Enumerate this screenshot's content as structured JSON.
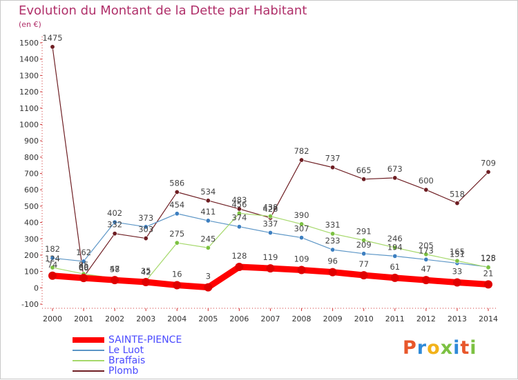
{
  "header": {
    "title": "Evolution du Montant de la Dette par Habitant",
    "unit": "(en €)"
  },
  "logo": {
    "text": "Proxiti",
    "colors": [
      "#e8572b",
      "#2f8ad8",
      "#f2b21a",
      "#7cc142",
      "#2f8ad8",
      "#e8572b",
      "#7cc142"
    ]
  },
  "chart_data": {
    "type": "line",
    "x": [
      "2000",
      "2001",
      "2002",
      "2003",
      "2004",
      "2005",
      "2006",
      "2007",
      "2008",
      "2009",
      "2010",
      "2011",
      "2012",
      "2013",
      "2014"
    ],
    "ylim": [
      -100,
      1500
    ],
    "yticks": [
      -100,
      0,
      100,
      200,
      300,
      400,
      500,
      600,
      700,
      800,
      900,
      1000,
      1100,
      1200,
      1300,
      1400,
      1500
    ],
    "grid": false,
    "legend": "bottom-left",
    "series": [
      {
        "name": "Plomb",
        "color": "#6e1e23",
        "marker": "#6e1e23",
        "width": 1.2,
        "radius": 3.2,
        "labeled": true,
        "values": [
          1475,
          66,
          332,
          303,
          586,
          534,
          483,
          428,
          782,
          737,
          665,
          673,
          600,
          518,
          709
        ]
      },
      {
        "name": "Le Luot",
        "color": "#5b95c6",
        "marker": "#3d7fc0",
        "width": 1.2,
        "radius": 3.2,
        "labeled": true,
        "values": [
          182,
          162,
          402,
          373,
          454,
          411,
          374,
          337,
          307,
          233,
          209,
          194,
          173,
          151,
          128
        ]
      },
      {
        "name": "Braffais",
        "color": "#a5d86a",
        "marker": "#7cc142",
        "width": 1.2,
        "radius": 3.2,
        "labeled": true,
        "values": [
          124,
          85,
          58,
          42,
          null,
          null,
          456,
          438,
          390,
          331,
          291,
          246,
          205,
          165,
          125
        ]
      },
      {
        "name": "SAINTE-PIENCE",
        "color": "#ff0000",
        "marker": "#e00000",
        "width": 9,
        "radius": 6,
        "labeled": true,
        "values": [
          74,
          60,
          47,
          35,
          16,
          3,
          128,
          119,
          109,
          96,
          77,
          61,
          47,
          33,
          21
        ]
      }
    ],
    "braffais_unlabeled_points": {
      "2004": 275,
      "2005": 245
    },
    "legend_order": [
      "SAINTE-PIENCE",
      "Le Luot",
      "Braffais",
      "Plomb"
    ],
    "legend_label_colors": {
      "SAINTE-PIENCE": "#4a4aff",
      "Le Luot": "#4a4aff",
      "Braffais": "#4a4aff",
      "Plomb": "#4a4aff"
    }
  }
}
